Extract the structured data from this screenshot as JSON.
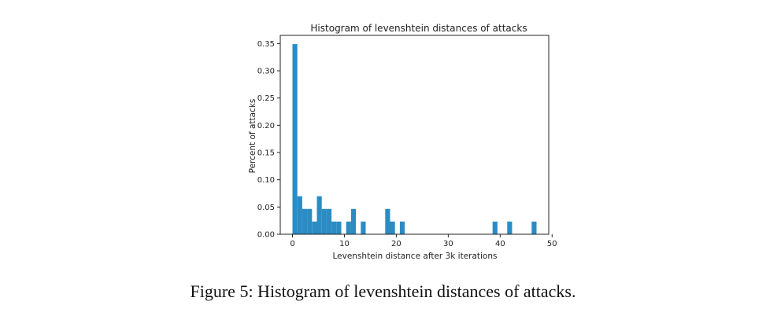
{
  "caption": "Figure 5: Histogram of levenshtein distances of attacks.",
  "chart_data": {
    "type": "bar",
    "title": "Histogram of levenshtein distances of attacks",
    "xlabel": "Levenshtein distance after 3k iterations",
    "ylabel": "Percent of attacks",
    "xlim": [
      -2.35,
      49.35
    ],
    "ylim": [
      0,
      0.365
    ],
    "xticks": [
      0,
      10,
      20,
      30,
      40,
      50
    ],
    "yticks": [
      0.0,
      0.05,
      0.1,
      0.15,
      0.2,
      0.25,
      0.3,
      0.35
    ],
    "ytick_labels": [
      "0.00",
      "0.05",
      "0.10",
      "0.15",
      "0.20",
      "0.25",
      "0.30",
      "0.35"
    ],
    "bar_color": "#2b8cc4",
    "bins": [
      {
        "start": 0.0,
        "end": 0.94,
        "value": 0.349
      },
      {
        "start": 0.94,
        "end": 1.88,
        "value": 0.0698
      },
      {
        "start": 1.88,
        "end": 2.82,
        "value": 0.0465
      },
      {
        "start": 2.82,
        "end": 3.76,
        "value": 0.0465
      },
      {
        "start": 3.76,
        "end": 4.7,
        "value": 0.0233
      },
      {
        "start": 4.7,
        "end": 5.64,
        "value": 0.0698
      },
      {
        "start": 5.64,
        "end": 6.58,
        "value": 0.0465
      },
      {
        "start": 6.58,
        "end": 7.52,
        "value": 0.0465
      },
      {
        "start": 7.52,
        "end": 8.46,
        "value": 0.0233
      },
      {
        "start": 8.46,
        "end": 9.4,
        "value": 0.0233
      },
      {
        "start": 10.34,
        "end": 11.28,
        "value": 0.0233
      },
      {
        "start": 11.28,
        "end": 12.22,
        "value": 0.0465
      },
      {
        "start": 13.16,
        "end": 14.1,
        "value": 0.0233
      },
      {
        "start": 17.86,
        "end": 18.8,
        "value": 0.0465
      },
      {
        "start": 18.8,
        "end": 19.74,
        "value": 0.0233
      },
      {
        "start": 20.68,
        "end": 21.62,
        "value": 0.0233
      },
      {
        "start": 38.54,
        "end": 39.48,
        "value": 0.0233
      },
      {
        "start": 41.36,
        "end": 42.3,
        "value": 0.0233
      },
      {
        "start": 46.06,
        "end": 47.0,
        "value": 0.0233
      }
    ]
  }
}
